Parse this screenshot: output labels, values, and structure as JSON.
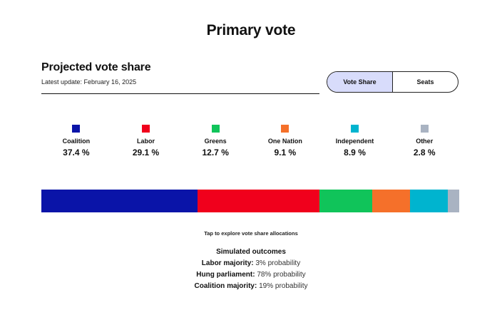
{
  "page": {
    "title": "Primary vote"
  },
  "header": {
    "section_title": "Projected vote share",
    "update_line": "Latest update: February 16, 2025"
  },
  "toggle": {
    "options": [
      {
        "label": "Vote Share",
        "selected": true
      },
      {
        "label": "Seats",
        "selected": false
      }
    ],
    "active_color": "#d8dcfb"
  },
  "parties": [
    {
      "name": "Coalition",
      "value_label": "37.4 %",
      "share": 37.4,
      "color": "#0a14a8"
    },
    {
      "name": "Labor",
      "value_label": "29.1 %",
      "share": 29.1,
      "color": "#f0001c"
    },
    {
      "name": "Greens",
      "value_label": "12.7 %",
      "share": 12.7,
      "color": "#10c45a"
    },
    {
      "name": "One Nation",
      "value_label": "9.1 %",
      "share": 9.1,
      "color": "#f5702a"
    },
    {
      "name": "Independent",
      "value_label": "8.9 %",
      "share": 8.9,
      "color": "#00b4cf"
    },
    {
      "name": "Other",
      "value_label": "2.8 %",
      "share": 2.8,
      "color": "#a9b3c2"
    }
  ],
  "hint": "Tap to explore vote share allocations",
  "outcomes": {
    "title": "Simulated outcomes",
    "items": [
      {
        "label": "Labor majority:",
        "probability": "3% probability"
      },
      {
        "label": "Hung parliament:",
        "probability": "78% probability"
      },
      {
        "label": "Coalition majority:",
        "probability": "19% probability"
      }
    ]
  }
}
